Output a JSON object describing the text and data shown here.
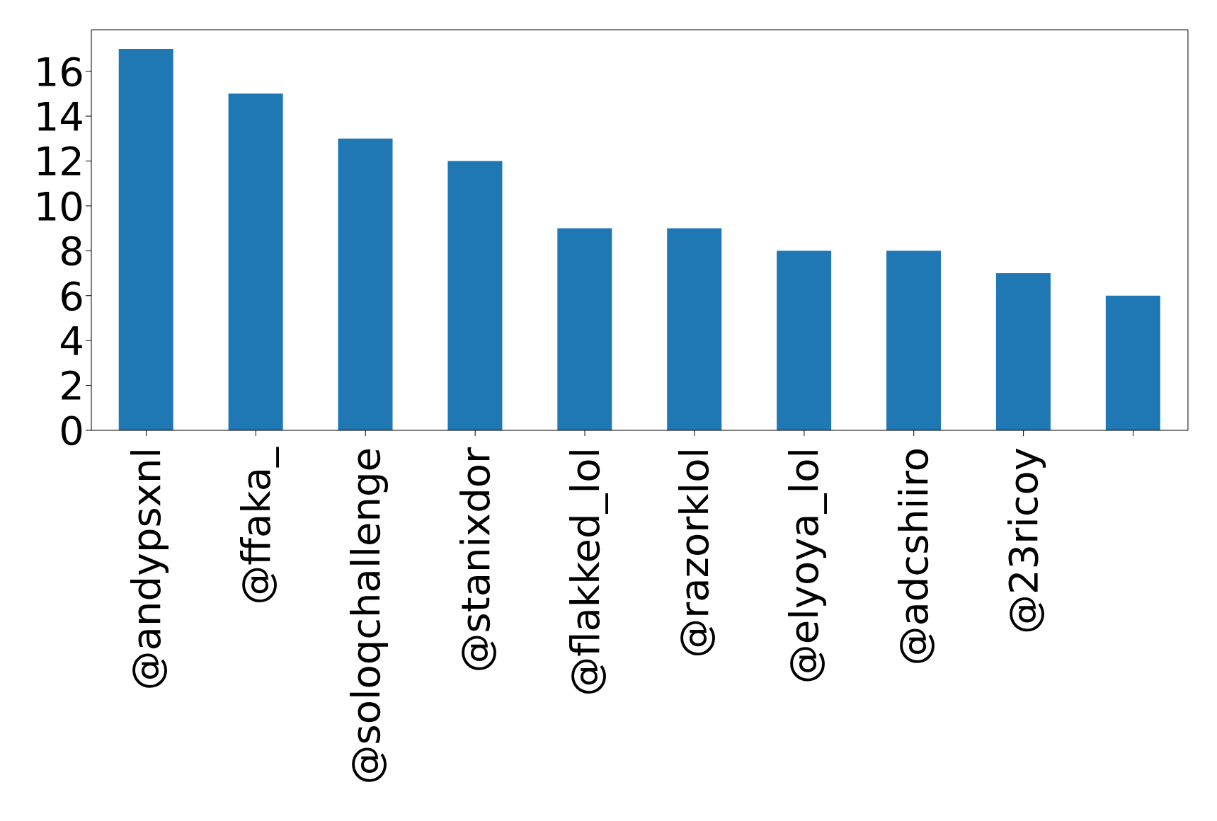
{
  "chart_data": {
    "type": "bar",
    "categories": [
      "@andypsxnl",
      "@ffaka_",
      "@soloqchallenge",
      "@stanixdor",
      "@flakked_lol",
      "@razorklol",
      "@elyoya_lol",
      "@adcshiiro",
      "@23ricoy",
      null
    ],
    "values": [
      17,
      15,
      13,
      12,
      9,
      9,
      8,
      8,
      7,
      6
    ],
    "color": "#1f77b4",
    "ylim": [
      0,
      17.85
    ],
    "yticks": [
      0,
      2,
      4,
      6,
      8,
      10,
      12,
      14,
      16
    ],
    "grid": false
  }
}
